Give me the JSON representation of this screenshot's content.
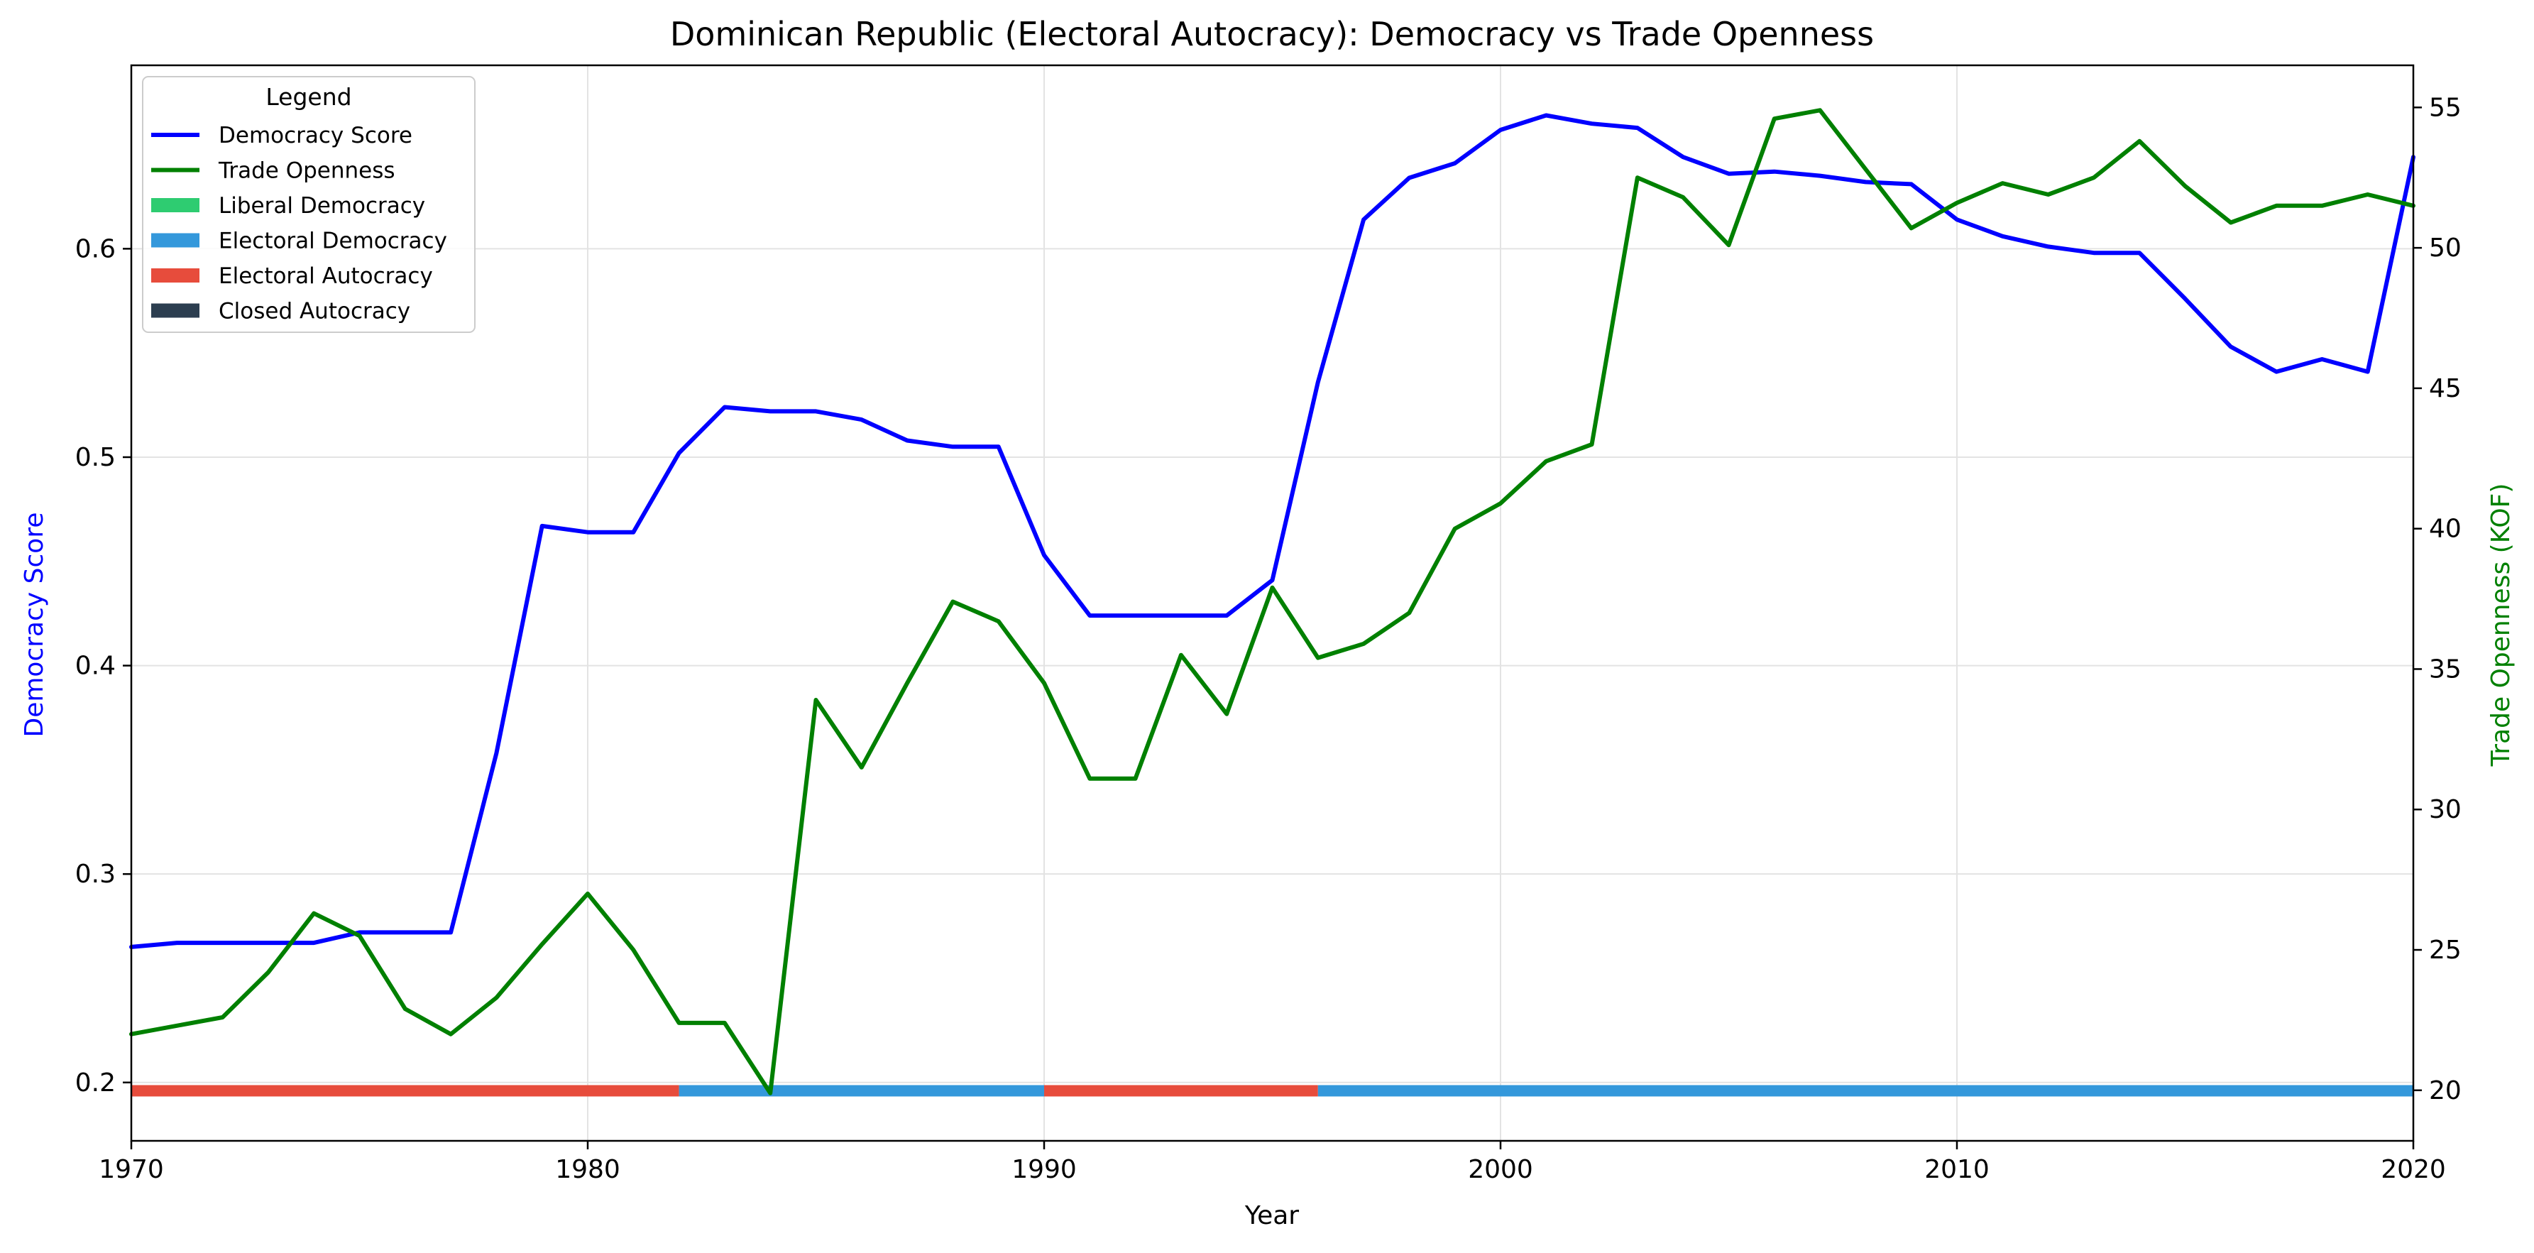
{
  "chart_data": {
    "type": "line",
    "title": "Dominican Republic (Electoral Autocracy): Democracy vs Trade Openness",
    "xlabel": "Year",
    "ylabel": "Democracy Score",
    "ylabel_right": "Trade Openness (KOF)",
    "xlim": [
      1970,
      2020
    ],
    "ylim": [
      0.172,
      0.688
    ],
    "ylim_right": [
      18.2,
      56.5
    ],
    "x_ticks": [
      1970,
      1980,
      1990,
      2000,
      2010,
      2020
    ],
    "y_ticks": [
      0.2,
      0.3,
      0.4,
      0.5,
      0.6
    ],
    "y_ticks_right": [
      20,
      25,
      30,
      35,
      40,
      45,
      50,
      55
    ],
    "grid": true,
    "legend_title": "Legend",
    "legend_position": "top-left",
    "x": [
      1970,
      1971,
      1972,
      1973,
      1974,
      1975,
      1976,
      1977,
      1978,
      1979,
      1980,
      1981,
      1982,
      1983,
      1984,
      1985,
      1986,
      1987,
      1988,
      1989,
      1990,
      1991,
      1992,
      1993,
      1994,
      1995,
      1996,
      1997,
      1998,
      1999,
      2000,
      2001,
      2002,
      2003,
      2004,
      2005,
      2006,
      2007,
      2008,
      2009,
      2010,
      2011,
      2012,
      2013,
      2014,
      2015,
      2016,
      2017,
      2018,
      2019,
      2020
    ],
    "series": [
      {
        "name": "Democracy Score",
        "axis": "left",
        "color": "#0000ff",
        "values": [
          0.265,
          0.267,
          0.267,
          0.267,
          0.267,
          0.272,
          0.272,
          0.272,
          0.358,
          0.467,
          0.464,
          0.464,
          0.502,
          0.524,
          0.522,
          0.522,
          0.518,
          0.508,
          0.505,
          0.505,
          0.453,
          0.424,
          0.424,
          0.424,
          0.424,
          0.441,
          0.536,
          0.614,
          0.634,
          0.641,
          0.657,
          0.664,
          0.66,
          0.658,
          0.644,
          0.636,
          0.637,
          0.635,
          0.632,
          0.631,
          0.614,
          0.606,
          0.601,
          0.598,
          0.598,
          0.576,
          0.553,
          0.541,
          0.547,
          0.541,
          0.644
        ]
      },
      {
        "name": "Trade Openness",
        "axis": "right",
        "color": "#008000",
        "values": [
          22.0,
          22.3,
          22.6,
          24.2,
          26.3,
          25.5,
          22.9,
          22.0,
          23.3,
          25.2,
          27.0,
          25.0,
          22.4,
          22.4,
          19.9,
          33.9,
          31.5,
          34.5,
          37.4,
          36.7,
          34.5,
          31.1,
          31.1,
          35.5,
          33.4,
          37.9,
          35.4,
          35.9,
          37.0,
          40.0,
          40.9,
          42.4,
          43.0,
          52.5,
          51.8,
          50.1,
          54.6,
          54.9,
          52.8,
          50.7,
          51.6,
          52.3,
          51.9,
          52.5,
          53.8,
          52.2,
          50.9,
          51.5,
          51.5,
          51.9,
          51.5
        ]
      }
    ],
    "regime_segments": [
      {
        "start": 1970,
        "end": 1982,
        "regime": "Electoral Autocracy",
        "color": "#e74c3c"
      },
      {
        "start": 1982,
        "end": 1990,
        "regime": "Electoral Democracy",
        "color": "#3498db"
      },
      {
        "start": 1990,
        "end": 1996,
        "regime": "Electoral Autocracy",
        "color": "#e74c3c"
      },
      {
        "start": 1996,
        "end": 2020,
        "regime": "Electoral Democracy",
        "color": "#3498db"
      }
    ],
    "regime_band_level": 0.196,
    "legend": [
      {
        "label": "Democracy Score",
        "kind": "line",
        "color": "#0000ff"
      },
      {
        "label": "Trade Openness",
        "kind": "line",
        "color": "#008000"
      },
      {
        "label": "Liberal Democracy",
        "kind": "patch",
        "color": "#2ecc71"
      },
      {
        "label": "Electoral Democracy",
        "kind": "patch",
        "color": "#3498db"
      },
      {
        "label": "Electoral Autocracy",
        "kind": "patch",
        "color": "#e74c3c"
      },
      {
        "label": "Closed Autocracy",
        "kind": "patch",
        "color": "#2c3e50"
      }
    ]
  }
}
